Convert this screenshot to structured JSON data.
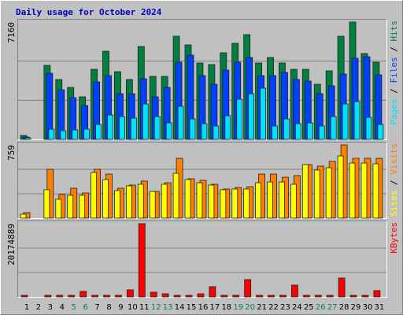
{
  "title": "Daily usage for October 2024",
  "chart_data": [
    {
      "type": "bar",
      "ylim": [
        0,
        7160
      ],
      "yticks": [
        7160
      ],
      "series": [
        {
          "name": "Hits",
          "color": "#008040",
          "values": [
            240,
            0,
            4517,
            3652,
            3171,
            2595,
            4276,
            5382,
            4132,
            3652,
            5670,
            3844,
            3844,
            6295,
            5766,
            4661,
            4565,
            5286,
            5862,
            6391,
            4661,
            4997,
            4661,
            4276,
            4276,
            3364,
            4180,
            6295,
            7160,
            5238,
            4709
          ]
        },
        {
          "name": "Files",
          "color": "#0040FF",
          "values": [
            144,
            0,
            4036,
            3027,
            2547,
            2066,
            3508,
            3892,
            2787,
            2787,
            3700,
            2595,
            3171,
            4709,
            5141,
            3892,
            3364,
            4228,
            4709,
            4997,
            3892,
            3892,
            4084,
            3652,
            3556,
            2787,
            3267,
            3988,
            4949,
            5045,
            3940
          ]
        },
        {
          "name": "Pages",
          "color": "#00E0FF",
          "values": [
            96,
            0,
            625,
            529,
            577,
            625,
            913,
            1490,
            1393,
            1297,
            2162,
            1393,
            1009,
            2018,
            1249,
            961,
            817,
            1442,
            2451,
            2787,
            3123,
            817,
            1249,
            961,
            1009,
            817,
            1393,
            2162,
            2306,
            1345,
            913
          ]
        }
      ]
    },
    {
      "type": "bar",
      "ylim": [
        0,
        759
      ],
      "yticks": [
        759
      ],
      "series": [
        {
          "name": "Visits",
          "color": "#FF8000",
          "values": [
            57,
            0,
            506,
            245,
            310,
            261,
            506,
            457,
            310,
            343,
            384,
            277,
            367,
            620,
            408,
            392,
            351,
            302,
            318,
            326,
            457,
            457,
            424,
            441,
            555,
            539,
            588,
            759,
            620,
            620,
            620
          ]
        },
        {
          "name": "Sites",
          "color": "#FFFF00",
          "values": [
            41,
            0,
            294,
            196,
            237,
            237,
            473,
            400,
            286,
            335,
            351,
            277,
            351,
            465,
            400,
            367,
            343,
            294,
            302,
            302,
            367,
            375,
            375,
            351,
            555,
            498,
            522,
            645,
            571,
            571,
            563
          ]
        }
      ]
    },
    {
      "type": "bar",
      "ylim": [
        0,
        20174889
      ],
      "yticks": [
        20174889
      ],
      "categories": [
        "1",
        "2",
        "3",
        "4",
        "5",
        "6",
        "7",
        "8",
        "9",
        "10",
        "11",
        "12",
        "13",
        "14",
        "15",
        "16",
        "17",
        "18",
        "19",
        "20",
        "21",
        "22",
        "23",
        "24",
        "25",
        "26",
        "27",
        "28",
        "29",
        "30",
        "31"
      ],
      "category_colors": [
        "#000000",
        "#000000",
        "#000000",
        "#000000",
        "#00805C",
        "#00805C",
        "#000000",
        "#000000",
        "#000000",
        "#000000",
        "#000000",
        "#00805C",
        "#00805C",
        "#000000",
        "#000000",
        "#000000",
        "#000000",
        "#000000",
        "#00805C",
        "#00805C",
        "#000000",
        "#000000",
        "#000000",
        "#000000",
        "#000000",
        "#00805C",
        "#00805C",
        "#000000",
        "#000000",
        "#000000",
        "#000000"
      ],
      "series": [
        {
          "name": "KBytes",
          "color": "#FF0000",
          "values": [
            433868,
            0,
            433868,
            433868,
            433868,
            1518538,
            433868,
            433868,
            433868,
            1952406,
            20174889,
            1301604,
            867736,
            433868,
            433868,
            867736,
            2820142,
            433868,
            433868,
            4772548,
            433868,
            433868,
            433868,
            3254010,
            433868,
            433868,
            433868,
            5206416,
            433868,
            433868,
            1735472
          ]
        }
      ]
    }
  ]
}
